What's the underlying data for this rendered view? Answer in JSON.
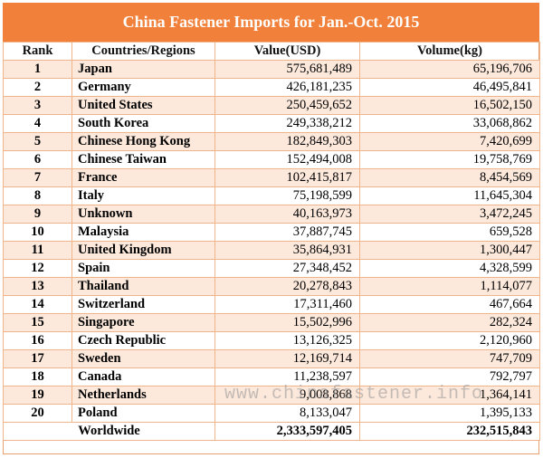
{
  "title": "China Fastener Imports for Jan.-Oct. 2015",
  "headers": {
    "rank": "Rank",
    "country": "Countries/Regions",
    "value": "Value(USD)",
    "volume": "Volume(kg)"
  },
  "rows": [
    {
      "rank": "1",
      "country": "Japan",
      "value": "575,681,489",
      "volume": "65,196,706"
    },
    {
      "rank": "2",
      "country": "Germany",
      "value": "426,181,235",
      "volume": "46,495,841"
    },
    {
      "rank": "3",
      "country": "United States",
      "value": "250,459,652",
      "volume": "16,502,150"
    },
    {
      "rank": "4",
      "country": "South Korea",
      "value": "249,338,212",
      "volume": "33,068,862"
    },
    {
      "rank": "5",
      "country": "Chinese Hong Kong",
      "value": "182,849,303",
      "volume": "7,420,699"
    },
    {
      "rank": "6",
      "country": "Chinese Taiwan",
      "value": "152,494,008",
      "volume": "19,758,769"
    },
    {
      "rank": "7",
      "country": "France",
      "value": "102,415,817",
      "volume": "8,454,569"
    },
    {
      "rank": "8",
      "country": "Italy",
      "value": "75,198,599",
      "volume": "11,645,304"
    },
    {
      "rank": "9",
      "country": "Unknown",
      "value": "40,163,973",
      "volume": "3,472,245"
    },
    {
      "rank": "10",
      "country": "Malaysia",
      "value": "37,887,745",
      "volume": "659,528"
    },
    {
      "rank": "11",
      "country": "United Kingdom",
      "value": "35,864,931",
      "volume": "1,300,447"
    },
    {
      "rank": "12",
      "country": "Spain",
      "value": "27,348,452",
      "volume": "4,328,599"
    },
    {
      "rank": "13",
      "country": "Thailand",
      "value": "20,278,843",
      "volume": "1,114,077"
    },
    {
      "rank": "14",
      "country": "Switzerland",
      "value": "17,311,460",
      "volume": "467,664"
    },
    {
      "rank": "15",
      "country": "Singapore",
      "value": "15,502,996",
      "volume": "282,324"
    },
    {
      "rank": "16",
      "country": "Czech Republic",
      "value": "13,126,325",
      "volume": "2,120,960"
    },
    {
      "rank": "17",
      "country": "Sweden",
      "value": "12,169,714",
      "volume": "747,709"
    },
    {
      "rank": "18",
      "country": "Canada",
      "value": "11,238,597",
      "volume": "792,797"
    },
    {
      "rank": "19",
      "country": "Netherlands",
      "value": "9,008,868",
      "volume": "1,364,141"
    },
    {
      "rank": "20",
      "country": "Poland",
      "value": "8,133,047",
      "volume": "1,395,133"
    }
  ],
  "total": {
    "label": "Worldwide",
    "value": "2,333,597,405",
    "volume": "232,515,843"
  },
  "watermark": "www.chinafastener.info",
  "colors": {
    "title_bg": "#f0803a",
    "row_alt": "#fde9dc",
    "border": "#f0b48a"
  }
}
